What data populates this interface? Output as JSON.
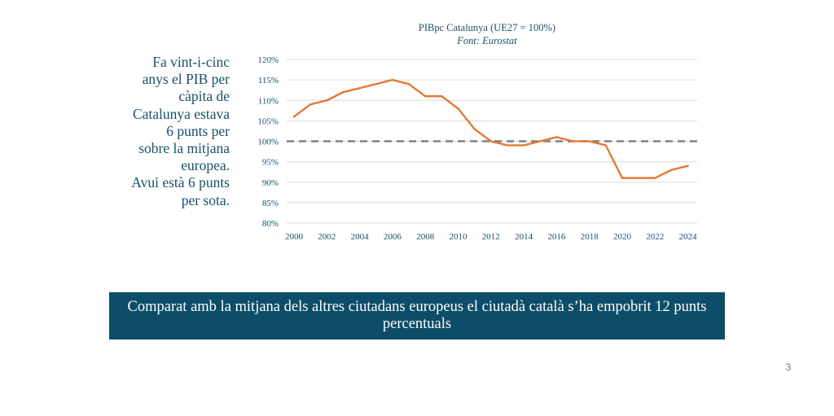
{
  "side_text": {
    "lines": [
      "Fa vint-i-cinc",
      "anys el PIB per",
      "càpita de",
      "Catalunya estava",
      "6 punts per",
      "sobre la mitjana",
      "europea.",
      "Avui està 6 punts",
      "per sota."
    ]
  },
  "banner": {
    "text": "Comparat amb la mitjana dels altres ciutadans europeus el ciutadà català s’ha empobrit 12 punts percentuals"
  },
  "page_number": "3",
  "colors": {
    "line": "#e5752e",
    "reference_line": "#808080",
    "banner_bg": "#0d4d67",
    "text": "#17506a"
  },
  "chart_data": {
    "type": "line",
    "title": "PIBpc Catalunya (UE27 = 100%)",
    "subtitle": "Font: Eurostat",
    "x": [
      2000,
      2001,
      2002,
      2003,
      2004,
      2005,
      2006,
      2007,
      2008,
      2009,
      2010,
      2011,
      2012,
      2013,
      2014,
      2015,
      2016,
      2017,
      2018,
      2019,
      2020,
      2021,
      2022,
      2023,
      2024
    ],
    "series": [
      {
        "values": [
          106,
          109,
          110,
          112,
          113,
          114,
          115,
          114,
          111,
          111,
          108,
          103,
          100,
          99,
          99,
          100,
          101,
          100,
          100,
          99,
          91,
          91,
          91,
          93,
          94
        ]
      }
    ],
    "reference_line": {
      "y": 100,
      "style": "dashed"
    },
    "ylim": [
      80,
      120
    ],
    "ytick_values": [
      80,
      85,
      90,
      95,
      100,
      105,
      110,
      115,
      120
    ],
    "ytick_labels": [
      "80%",
      "85%",
      "90%",
      "95%",
      "100%",
      "105%",
      "110%",
      "115%",
      "120%"
    ],
    "xtick_labels": [
      "2000",
      "2002",
      "2004",
      "2006",
      "2008",
      "2010",
      "2012",
      "2014",
      "2016",
      "2018",
      "2020",
      "2022",
      "2024"
    ],
    "grid": true,
    "legend": "none"
  }
}
